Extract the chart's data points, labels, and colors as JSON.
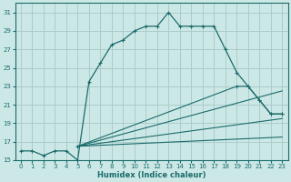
{
  "xlabel": "Humidex (Indice chaleur)",
  "bg_color": "#cce8e6",
  "grid_color": "#aaccca",
  "line_color": "#1a6b6b",
  "xlim": [
    -0.5,
    23.5
  ],
  "ylim": [
    15,
    32
  ],
  "xticks": [
    0,
    1,
    2,
    3,
    4,
    5,
    6,
    7,
    8,
    9,
    10,
    11,
    12,
    13,
    14,
    15,
    16,
    17,
    18,
    19,
    20,
    21,
    22,
    23
  ],
  "yticks": [
    15,
    17,
    19,
    21,
    23,
    25,
    27,
    29,
    31
  ],
  "line1_x": [
    0,
    1,
    2,
    3,
    4,
    5,
    6,
    7,
    8,
    9,
    10,
    11,
    12,
    13,
    14,
    15,
    16,
    17,
    18,
    19,
    20,
    21,
    22,
    23
  ],
  "line1_y": [
    16,
    16,
    15.5,
    16,
    16,
    15,
    23.5,
    25.5,
    27.5,
    28.0,
    29.0,
    29.5,
    29.5,
    31.0,
    29.5,
    29.5,
    29.5,
    29.5,
    27.0,
    24.5,
    23.0,
    21.5,
    20.0,
    20.0
  ],
  "line2_x": [
    5,
    19,
    20,
    21,
    22,
    23
  ],
  "line2_y": [
    16.5,
    23.0,
    23.0,
    21.5,
    20.0,
    20.0
  ],
  "line3_x": [
    5,
    23
  ],
  "line3_y": [
    16.5,
    22.5
  ],
  "line4_x": [
    5,
    23
  ],
  "line4_y": [
    16.5,
    19.5
  ],
  "line5_x": [
    5,
    23
  ],
  "line5_y": [
    16.5,
    17.5
  ]
}
